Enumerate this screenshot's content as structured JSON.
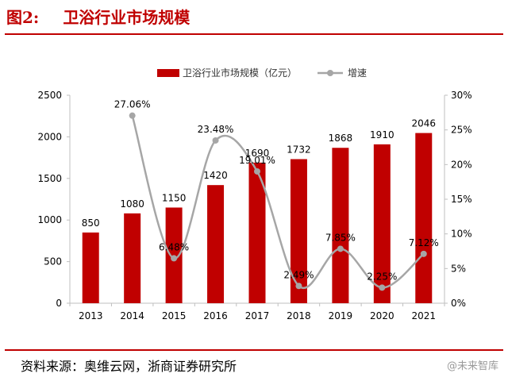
{
  "figure": {
    "label": "图2:",
    "title": "卫浴行业市场规模",
    "source": "资料来源：奥维云网，浙商证券研究所",
    "watermark": "@未来智库"
  },
  "chart_data": {
    "type": "bar",
    "categories": [
      "2013",
      "2014",
      "2015",
      "2016",
      "2017",
      "2018",
      "2019",
      "2020",
      "2021"
    ],
    "series": [
      {
        "name": "卫浴行业市场规模（亿元）",
        "type": "bar",
        "axis": "left",
        "values": [
          850,
          1080,
          1150,
          1420,
          1690,
          1732,
          1868,
          1910,
          2046
        ],
        "labels": [
          "850",
          "1080",
          "1150",
          "1420",
          "1690",
          "1732",
          "1868",
          "1910",
          "2046"
        ],
        "color": "#c00000"
      },
      {
        "name": "增速",
        "type": "line",
        "axis": "right",
        "smooth": true,
        "values": [
          null,
          27.06,
          6.48,
          23.48,
          19.01,
          2.49,
          7.85,
          2.25,
          7.12
        ],
        "labels": [
          "",
          "27.06%",
          "6.48%",
          "23.48%",
          "19.01%",
          "2.49%",
          "7.85%",
          "2.25%",
          "7.12%"
        ],
        "color": "#a6a6a6"
      }
    ],
    "y_left": {
      "min": 0,
      "max": 2500,
      "ticks": [
        "0",
        "500",
        "1000",
        "1500",
        "2000",
        "2500"
      ]
    },
    "y_right": {
      "min": 0,
      "max": 30,
      "ticks": [
        "0%",
        "5%",
        "10%",
        "15%",
        "20%",
        "25%",
        "30%"
      ]
    },
    "legend": "top-center",
    "grid": false
  }
}
